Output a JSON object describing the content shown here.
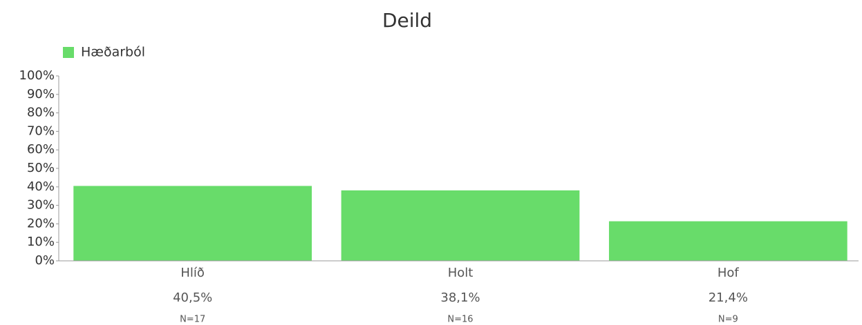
{
  "chart_data": {
    "type": "bar",
    "title": "Deild",
    "legend": "Hæðarból",
    "color": "#68dc6a",
    "categories": [
      "Hlíð",
      "Holt",
      "Hof"
    ],
    "values": [
      40.5,
      38.1,
      21.4
    ],
    "value_labels": [
      "40,5%",
      "38,1%",
      "21,4%"
    ],
    "counts": [
      "N=17",
      "N=16",
      "N=9"
    ],
    "ylim": [
      0,
      100
    ],
    "yticks": [
      {
        "value": 0,
        "label": "0%"
      },
      {
        "value": 10,
        "label": "10%"
      },
      {
        "value": 20,
        "label": "20%"
      },
      {
        "value": 30,
        "label": "30%"
      },
      {
        "value": 40,
        "label": "40%"
      },
      {
        "value": 50,
        "label": "50%"
      },
      {
        "value": 60,
        "label": "60%"
      },
      {
        "value": 70,
        "label": "70%"
      },
      {
        "value": 80,
        "label": "80%"
      },
      {
        "value": 90,
        "label": "90%"
      },
      {
        "value": 100,
        "label": "100%"
      }
    ],
    "grid": false
  }
}
